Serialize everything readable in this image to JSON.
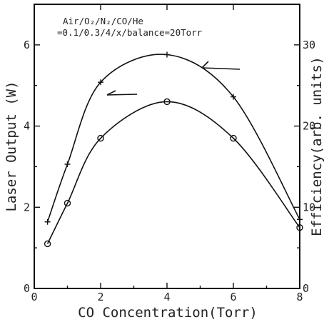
{
  "chart_data": {
    "type": "line",
    "title": "",
    "annotation": {
      "line1": "Air/O₂/N₂/CO/He",
      "line2": "=0.1/0.3/4/x/balance=20Torr"
    },
    "xlabel": "CO Concentration(Torr)",
    "ylabel_left": "Laser Output (W)",
    "ylabel_right": "Efficiency(arb. units)",
    "xlim": [
      0,
      8
    ],
    "ylim_left": [
      0,
      7
    ],
    "ylim_right": [
      0,
      35
    ],
    "x_ticks": [
      "0",
      "2",
      "4",
      "6",
      "8"
    ],
    "y_left_ticks": [
      "0",
      "2",
      "4",
      "6"
    ],
    "y_right_ticks": [
      "0",
      "10",
      "20",
      "30"
    ],
    "grid": false,
    "series": [
      {
        "axis": "right",
        "marker": "plus",
        "x": [
          0.4,
          1,
          2,
          4,
          6,
          8
        ],
        "y": [
          8.2,
          15.3,
          25.4,
          28.8,
          23.6,
          8.5
        ]
      },
      {
        "axis": "left",
        "marker": "circle",
        "x": [
          0.4,
          1,
          2,
          4,
          6,
          8
        ],
        "y": [
          1.1,
          2.1,
          3.7,
          4.6,
          3.7,
          1.5
        ]
      }
    ]
  }
}
